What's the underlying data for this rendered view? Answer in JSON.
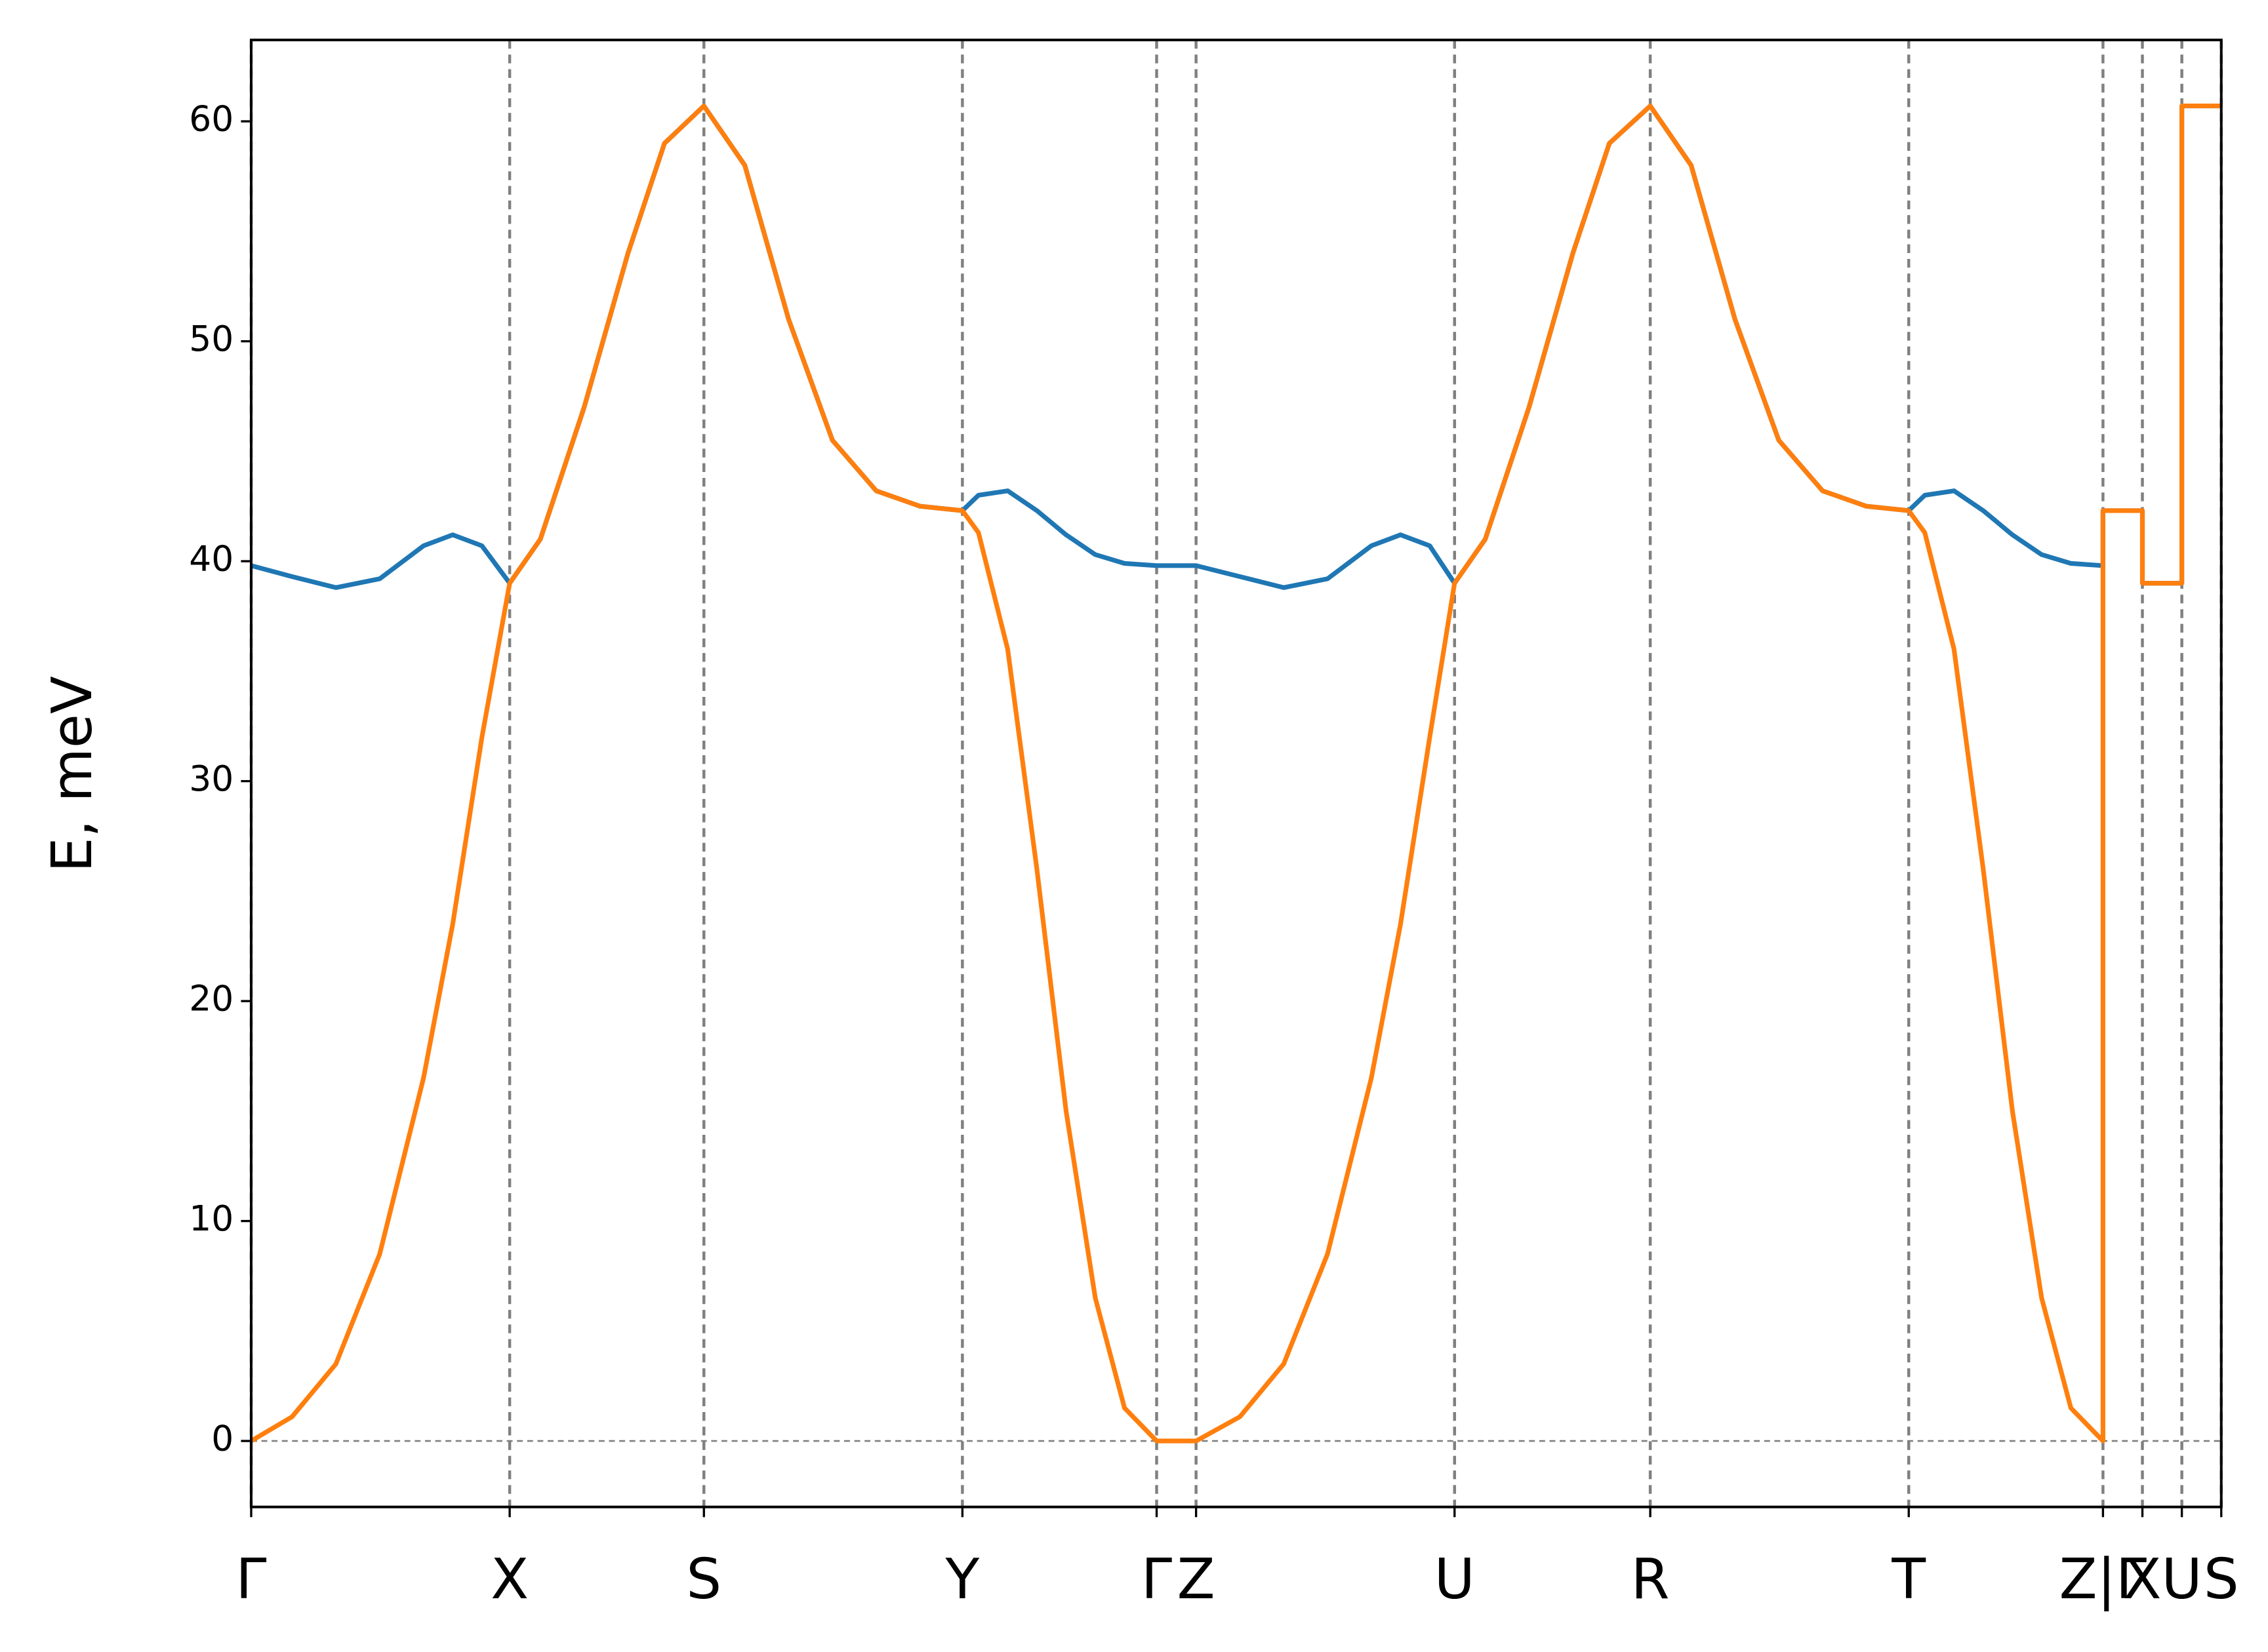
{
  "chart_data": {
    "type": "line",
    "ylabel": "E, meV",
    "x": [
      0,
      0.28,
      0.58,
      0.88,
      1.18,
      1.38,
      1.58,
      1.77,
      1.98,
      2.28,
      2.58,
      2.83,
      3.1,
      3.38,
      3.68,
      3.98,
      4.28,
      4.58,
      4.87,
      4.98,
      5.18,
      5.38,
      5.58,
      5.78,
      5.98,
      6.2,
      6.47,
      6.77,
      7.07,
      7.37,
      7.67,
      7.87,
      8.07,
      8.24,
      8.45,
      8.75,
      9.05,
      9.3,
      9.58,
      9.86,
      10.16,
      10.46,
      10.76,
      11.06,
      11.35,
      11.46,
      11.66,
      11.86,
      12.06,
      12.26,
      12.46,
      12.68,
      12.68,
      12.95,
      12.95,
      13.22,
      13.22,
      13.49
    ],
    "series": [
      {
        "color": "#1f77b4",
        "values": [
          39.8,
          39.3,
          38.8,
          39.2,
          40.7,
          41.2,
          40.7,
          39,
          41,
          47,
          54,
          59,
          60.7,
          58,
          51,
          45.5,
          43.2,
          42.5,
          42.3,
          43,
          43.2,
          42.3,
          41.2,
          40.3,
          39.9,
          39.8,
          39.8,
          39.3,
          38.8,
          39.2,
          40.7,
          41.2,
          40.7,
          39,
          41,
          47,
          54,
          59,
          60.7,
          58,
          51,
          45.5,
          43.2,
          42.5,
          42.3,
          43,
          43.2,
          42.3,
          41.2,
          40.3,
          39.9,
          39.8,
          42.3,
          42.3,
          39,
          39,
          60.7,
          60.7
        ]
      },
      {
        "color": "#ff7f0e",
        "values": [
          0,
          1.1,
          3.5,
          8.5,
          16.5,
          23.5,
          32,
          39,
          41,
          47,
          54,
          59,
          60.7,
          58,
          51,
          45.5,
          43.2,
          42.5,
          42.3,
          41.3,
          36,
          26,
          15,
          6.5,
          1.5,
          0,
          0,
          1.1,
          3.5,
          8.5,
          16.5,
          23.5,
          32,
          39,
          41,
          47,
          54,
          59,
          60.7,
          58,
          51,
          45.5,
          43.2,
          42.5,
          42.3,
          41.3,
          36,
          26,
          15,
          6.5,
          1.5,
          0,
          42.3,
          42.3,
          39,
          39,
          60.7,
          60.7
        ]
      }
    ],
    "xlim": [
      0,
      13.49
    ],
    "xticks": [
      {
        "value": 0,
        "label": "Γ"
      },
      {
        "value": 1.77,
        "label": "X"
      },
      {
        "value": 3.1,
        "label": "S"
      },
      {
        "value": 4.87,
        "label": "Y"
      },
      {
        "value": 6.2,
        "label": "Γ"
      },
      {
        "value": 6.47,
        "label": "Z"
      },
      {
        "value": 8.24,
        "label": "U"
      },
      {
        "value": 9.58,
        "label": "R"
      },
      {
        "value": 11.35,
        "label": "T"
      },
      {
        "value": 12.68,
        "label": "Z|Γ"
      },
      {
        "value": 12.95,
        "label": "X"
      },
      {
        "value": 13.22,
        "label": "U"
      },
      {
        "value": 13.49,
        "label": "S"
      }
    ],
    "ylim": [
      -3.0,
      63.7
    ],
    "yticks": [
      0,
      10,
      20,
      30,
      40,
      50,
      60
    ],
    "vgrid": true,
    "hline": 0
  }
}
